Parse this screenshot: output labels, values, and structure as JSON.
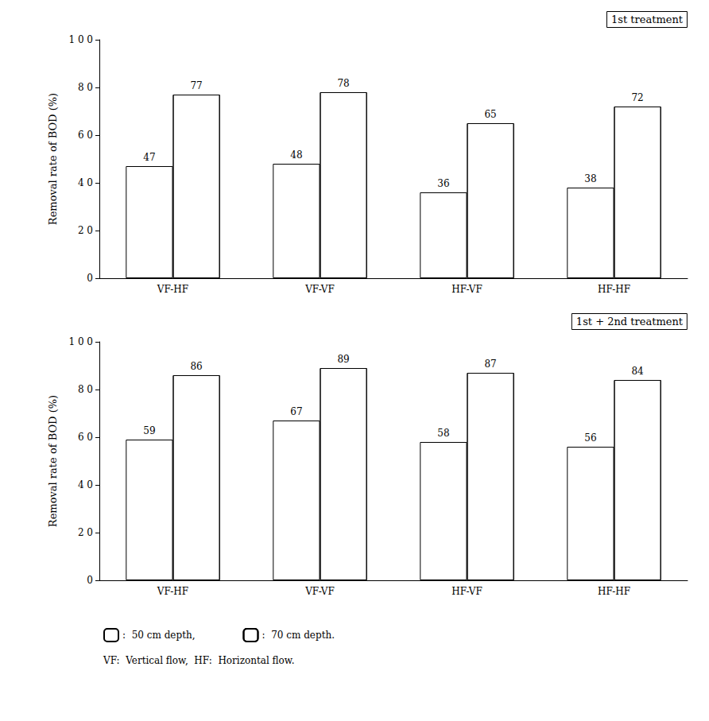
{
  "chart_data": [
    {
      "type": "bar",
      "categories": [
        "VF-HF",
        "VF-VF",
        "HF-VF",
        "HF-HF"
      ],
      "series": [
        {
          "name": ":  50 cm depth,",
          "color": "#ffffff",
          "values": [
            47,
            48,
            36,
            38
          ]
        },
        {
          "name": ":  70 cm depth.",
          "color": "#ffffff",
          "values": [
            77,
            78,
            65,
            72
          ]
        }
      ],
      "ylabel": "Removal rate of BOD (%)",
      "annotations": [
        "1st treatment"
      ],
      "ylim": [
        0,
        100
      ],
      "yticks": [
        0,
        {
          "value": 20,
          "label": "2 0"
        },
        {
          "value": 40,
          "label": "4 0"
        },
        {
          "value": 60,
          "label": "6 0"
        },
        {
          "value": 80,
          "label": "8 0"
        },
        {
          "value": 100,
          "label": "1 0 0"
        }
      ],
      "grid": false,
      "data_labels": true
    },
    {
      "type": "bar",
      "categories": [
        "VF-HF",
        "VF-VF",
        "HF-VF",
        "HF-HF"
      ],
      "series": [
        {
          "name": ":  50 cm depth,",
          "color": "#ffffff",
          "values": [
            59,
            67,
            58,
            56
          ]
        },
        {
          "name": ":  70 cm depth.",
          "color": "#ffffff",
          "values": [
            86,
            89,
            87,
            84
          ]
        }
      ],
      "ylabel": "Removal rate of BOD (%)",
      "annotations": [
        "1st + 2nd treatment",
        "VF:  Vertical flow,  HF:  Horizontal flow."
      ],
      "ylim": [
        0,
        100
      ],
      "yticks": [
        0,
        {
          "value": 20,
          "label": "2 0"
        },
        {
          "value": 40,
          "label": "4 0"
        },
        {
          "value": 60,
          "label": "6 0"
        },
        {
          "value": 80,
          "label": "8 0"
        },
        {
          "value": 100,
          "label": "1 0 0"
        }
      ],
      "grid": false,
      "data_labels": true,
      "legend": "bottom"
    }
  ]
}
